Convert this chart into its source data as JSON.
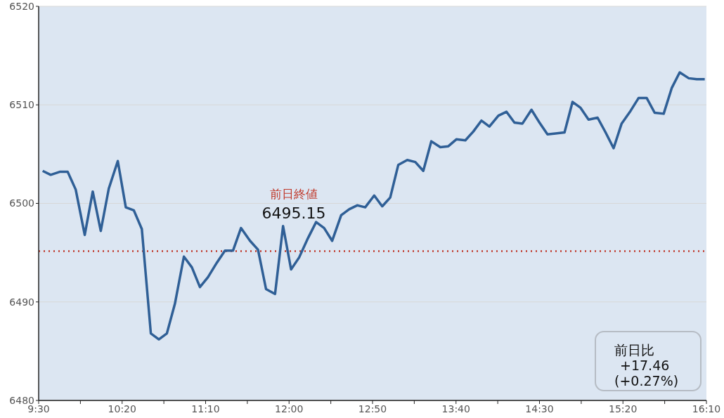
{
  "chart_data": {
    "type": "line",
    "x": [
      9.54,
      9.62,
      9.71,
      9.79,
      9.87,
      9.96,
      10.04,
      10.12,
      10.2,
      10.29,
      10.37,
      10.45,
      10.53,
      10.62,
      10.7,
      10.78,
      10.86,
      10.95,
      11.03,
      11.11,
      11.19,
      11.28,
      11.36,
      11.44,
      11.52,
      11.61,
      11.69,
      11.77,
      11.86,
      11.94,
      12.02,
      12.1,
      12.19,
      12.27,
      12.35,
      12.43,
      12.52,
      12.6,
      12.68,
      12.76,
      12.85,
      12.93,
      13.01,
      13.09,
      13.18,
      13.26,
      13.34,
      13.42,
      13.51,
      13.59,
      13.67,
      13.76,
      13.84,
      13.92,
      14.0,
      14.09,
      14.17,
      14.25,
      14.33,
      14.42,
      14.5,
      14.58,
      14.66,
      14.75,
      14.83,
      14.91,
      14.99,
      15.08,
      15.16,
      15.24,
      15.32,
      15.41,
      15.49,
      15.57,
      15.65,
      15.74,
      15.82,
      15.9,
      15.99,
      16.07,
      16.15
    ],
    "series": [
      {
        "color": "#2f5f96",
        "values": [
          6503.3,
          6502.9,
          6503.2,
          6503.2,
          6501.4,
          6496.8,
          6501.2,
          6497.2,
          6501.5,
          6504.3,
          6499.6,
          6499.3,
          6497.4,
          6486.8,
          6486.2,
          6486.8,
          6489.8,
          6494.6,
          6493.5,
          6491.5,
          6492.5,
          6494.0,
          6495.2,
          6495.2,
          6497.5,
          6496.2,
          6495.3,
          6491.3,
          6490.8,
          6497.7,
          6493.3,
          6494.5,
          6496.5,
          6498.1,
          6497.5,
          6496.2,
          6498.8,
          6499.4,
          6499.8,
          6499.6,
          6500.8,
          6499.7,
          6500.6,
          6503.9,
          6504.4,
          6504.2,
          6503.3,
          6506.3,
          6505.7,
          6505.8,
          6506.5,
          6506.4,
          6507.3,
          6508.4,
          6507.8,
          6508.9,
          6509.3,
          6508.2,
          6508.1,
          6509.5,
          6508.2,
          6507.0,
          6507.1,
          6507.2,
          6510.3,
          6509.7,
          6508.5,
          6508.7,
          6507.2,
          6505.6,
          6508.1,
          6509.4,
          6510.7,
          6510.7,
          6509.2,
          6509.1,
          6511.7,
          6513.3,
          6512.7,
          6512.6,
          6512.6
        ]
      }
    ],
    "xlim": [
      9.5,
      16.1667
    ],
    "xticks": [
      {
        "value": 9.5,
        "label": "9:30"
      },
      {
        "value": 9.9167,
        "label": null
      },
      {
        "value": 10.3333,
        "label": "10:20"
      },
      {
        "value": 10.75,
        "label": null
      },
      {
        "value": 11.1667,
        "label": "11:10"
      },
      {
        "value": 11.5833,
        "label": null
      },
      {
        "value": 12,
        "label": "12:00"
      },
      {
        "value": 12.4167,
        "label": null
      },
      {
        "value": 12.8333,
        "label": "12:50"
      },
      {
        "value": 13.25,
        "label": null
      },
      {
        "value": 13.6667,
        "label": "13:40"
      },
      {
        "value": 14.0833,
        "label": null
      },
      {
        "value": 14.5,
        "label": "14:30"
      },
      {
        "value": 14.9167,
        "label": null
      },
      {
        "value": 15.3333,
        "label": "15:20"
      },
      {
        "value": 15.75,
        "label": null
      },
      {
        "value": 16.1667,
        "label": "16:10"
      }
    ],
    "ylim": [
      6480,
      6520
    ],
    "yticks": [
      6480,
      6490,
      6500,
      6510,
      6520
    ],
    "grid": "y",
    "marker": "none",
    "line_style": "solid",
    "ref_lines": [
      {
        "axis": "y",
        "value": 6495.15,
        "label": "前日終値",
        "color": "#c0392b",
        "line_style": "dotted"
      }
    ],
    "annotations": [
      "6495.15",
      "前日比\n+17.46\n(+0.27%)"
    ]
  }
}
